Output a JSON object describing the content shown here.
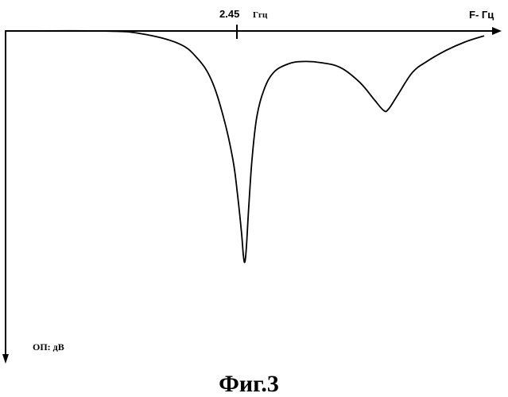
{
  "chart_data": {
    "type": "line",
    "title": "",
    "xlabel": "F- Гц",
    "ylabel": "ОП: дВ",
    "x_marker": {
      "value": 2.45,
      "label_value": "2.45",
      "label_unit": "Ггц"
    },
    "grid": false,
    "legend": "none",
    "series": [
      {
        "values_description_note": "",
        "points": [
          [
            0.0,
            0.0
          ],
          [
            0.2,
            0.0
          ],
          [
            0.28,
            -0.2
          ],
          [
            0.36,
            -1.0
          ],
          [
            0.4,
            -2.2
          ],
          [
            0.43,
            -4.0
          ],
          [
            0.455,
            -7.0
          ],
          [
            0.475,
            -10.5
          ],
          [
            0.485,
            -13.5
          ],
          [
            0.493,
            -16.5
          ],
          [
            0.497,
            -18.4
          ],
          [
            0.5,
            -18.9
          ],
          [
            0.503,
            -17.8
          ],
          [
            0.508,
            -14.5
          ],
          [
            0.515,
            -10.5
          ],
          [
            0.525,
            -7.0
          ],
          [
            0.54,
            -4.8
          ],
          [
            0.56,
            -3.4
          ],
          [
            0.59,
            -2.7
          ],
          [
            0.62,
            -2.5
          ],
          [
            0.66,
            -2.6
          ],
          [
            0.7,
            -3.0
          ],
          [
            0.74,
            -4.2
          ],
          [
            0.77,
            -5.6
          ],
          [
            0.79,
            -6.5
          ],
          [
            0.8,
            -6.4
          ],
          [
            0.82,
            -5.2
          ],
          [
            0.85,
            -3.4
          ],
          [
            0.88,
            -2.5
          ],
          [
            0.92,
            -1.6
          ],
          [
            0.96,
            -0.9
          ],
          [
            1.0,
            -0.4
          ]
        ]
      }
    ]
  },
  "figure_caption": "Фиг.3"
}
